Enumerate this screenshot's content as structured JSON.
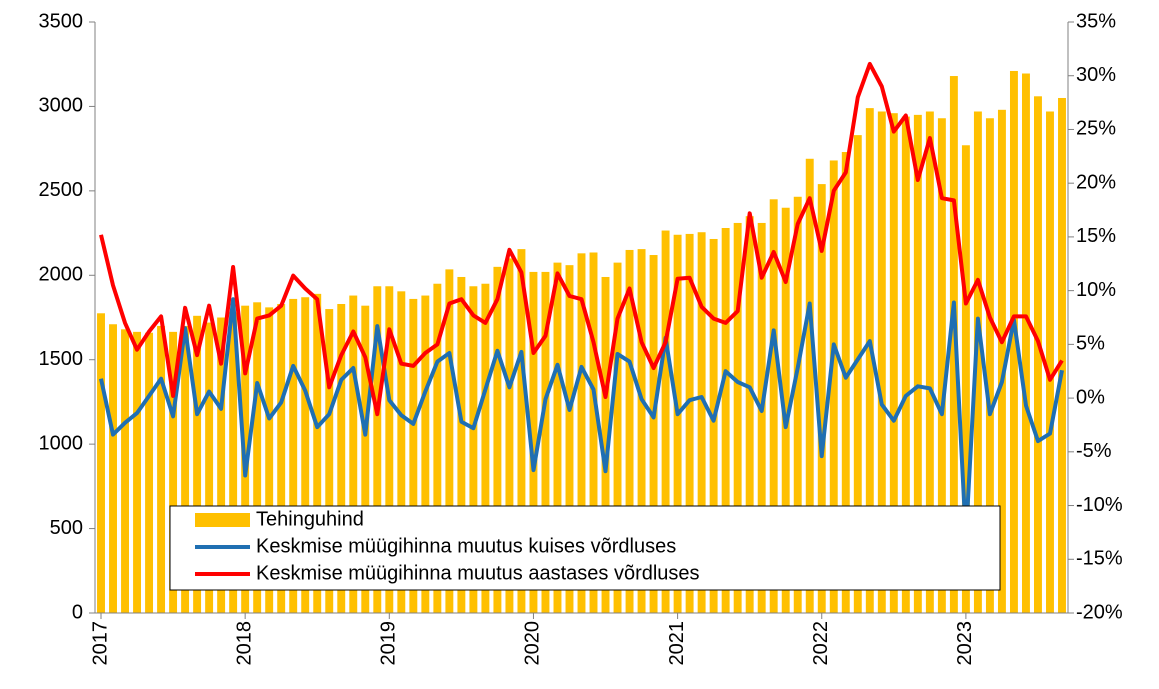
{
  "chart_data": {
    "type": "bar",
    "categories": [
      "2017",
      null,
      null,
      null,
      null,
      null,
      null,
      null,
      null,
      null,
      null,
      null,
      "2018",
      null,
      null,
      null,
      null,
      null,
      null,
      null,
      null,
      null,
      null,
      null,
      "2019",
      null,
      null,
      null,
      null,
      null,
      null,
      null,
      null,
      null,
      null,
      null,
      "2020",
      null,
      null,
      null,
      null,
      null,
      null,
      null,
      null,
      null,
      null,
      null,
      "2021",
      null,
      null,
      null,
      null,
      null,
      null,
      null,
      null,
      null,
      null,
      null,
      "2022",
      null,
      null,
      null,
      null,
      null,
      null,
      null,
      null,
      null,
      null,
      null,
      "2023",
      null,
      null,
      null,
      null,
      null,
      null,
      null,
      null
    ],
    "series": [
      {
        "name": "Tehinguhind",
        "type": "bar",
        "color": "#ffc000",
        "values": [
          1775,
          1710,
          1680,
          1665,
          1660,
          1700,
          1665,
          1700,
          1760,
          1720,
          1750,
          1780,
          1820,
          1840,
          1810,
          1830,
          1860,
          1870,
          1890,
          1800,
          1830,
          1880,
          1820,
          1935,
          1935,
          1905,
          1860,
          1880,
          1950,
          2035,
          1990,
          1935,
          1950,
          2050,
          2100,
          2155,
          2020,
          2020,
          2075,
          2060,
          2130,
          2135,
          1990,
          2075,
          2150,
          2155,
          2120,
          2265,
          2240,
          2245,
          2255,
          2215,
          2280,
          2310,
          2350,
          2310,
          2450,
          2400,
          2465,
          2690,
          2540,
          2680,
          2730,
          2830,
          2990,
          2970,
          2960,
          2940,
          2950,
          2970,
          2930,
          3180,
          2770,
          2970,
          2930,
          2980,
          3210,
          3195,
          3060,
          2970,
          3050
        ]
      },
      {
        "name": "Keskmise müügihinna muutus kuises võrdluses",
        "type": "line",
        "axis": "y2",
        "color": "#1f6fb2",
        "values": [
          1.8,
          -3.4,
          -2.3,
          -1.4,
          0.2,
          1.8,
          -1.7,
          6.5,
          -1.5,
          0.6,
          -1,
          9.2,
          -7.2,
          1.4,
          -1.9,
          -0.4,
          3,
          0.7,
          -2.7,
          -1.5,
          1.7,
          2.8,
          -3.4,
          6.7,
          -0.2,
          -1.6,
          -2.4,
          0.6,
          3.4,
          4.2,
          -2.2,
          -2.8,
          0.8,
          4.4,
          1,
          4.3,
          -6.7,
          -0.1,
          3.1,
          -1.1,
          2.9,
          0.8,
          -6.8,
          4.1,
          3.4,
          -0.1,
          -1.8,
          5.6,
          -1.5,
          -0.2,
          0.1,
          -2.1,
          2.5,
          1.5,
          1,
          -1.2,
          6.3,
          -2.7,
          2.8,
          8.8,
          -5.4,
          5,
          1.9,
          3.6,
          5.3,
          -0.6,
          -2.1,
          0.2,
          1.1,
          0.9,
          -1.5,
          8.9,
          -13,
          7.4,
          -1.5,
          1.5,
          7.3,
          -0.7,
          -4,
          -3.3,
          2.6
        ]
      },
      {
        "name": "Keskmise müügihinna muutus aastases võrdluses",
        "type": "line",
        "axis": "y2",
        "color": "#ff0000",
        "values": [
          15.2,
          10.5,
          7,
          4.5,
          6.2,
          7.6,
          0.2,
          8.4,
          4,
          8.6,
          3.2,
          12.2,
          2.3,
          7.4,
          7.7,
          8.6,
          11.4,
          10.2,
          9.2,
          1,
          4,
          6.2,
          3.8,
          -1.5,
          6.4,
          3.2,
          3,
          4.2,
          5,
          8.8,
          9.2,
          7.7,
          7,
          9.2,
          13.8,
          11.7,
          4.2,
          5.8,
          11.6,
          9.5,
          9.2,
          5.2,
          0.1,
          7.4,
          10.2,
          5.2,
          2.8,
          5.2,
          11.1,
          11.2,
          8.5,
          7.4,
          7,
          8.1,
          17.2,
          11.2,
          13.6,
          10.8,
          16.2,
          18.6,
          13.7,
          19.3,
          21,
          28,
          31.1,
          29,
          24.8,
          26.3,
          20.3,
          24.2,
          18.6,
          18.4,
          8.8,
          11,
          7.5,
          5.2,
          7.6,
          7.6,
          5.3,
          1.7,
          3.5
        ]
      }
    ],
    "ylim": [
      0,
      3500
    ],
    "yticks": [
      0,
      500,
      1000,
      1500,
      2000,
      2500,
      3000,
      3500
    ],
    "y2lim": [
      -20,
      35
    ],
    "y2ticks": [
      {
        "value": -20,
        "label": "-20%"
      },
      {
        "value": -15,
        "label": "-15%"
      },
      {
        "value": -10,
        "label": "-10%"
      },
      {
        "value": -5,
        "label": "-5%"
      },
      {
        "value": 0,
        "label": "0%"
      },
      {
        "value": 5,
        "label": "5%"
      },
      {
        "value": 10,
        "label": "10%"
      },
      {
        "value": 15,
        "label": "15%"
      },
      {
        "value": 20,
        "label": "20%"
      },
      {
        "value": 25,
        "label": "25%"
      },
      {
        "value": 30,
        "label": "30%"
      },
      {
        "value": 35,
        "label": "35%"
      }
    ],
    "legend": "bottom-left",
    "grid": false
  }
}
